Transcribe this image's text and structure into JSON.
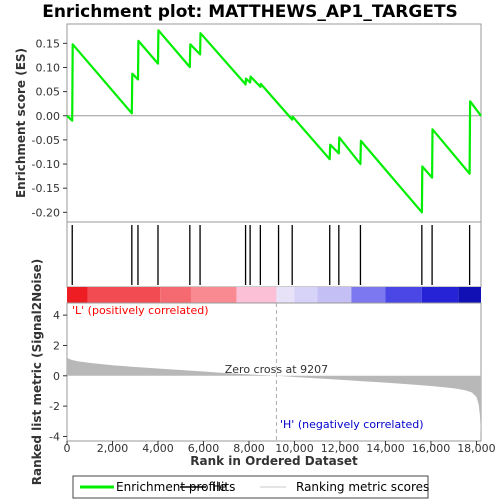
{
  "chart_data": {
    "type": "line",
    "title": "Enrichment plot: MATTHEWS_AP1_TARGETS",
    "xlabel": "Rank in Ordered Dataset",
    "es_panel": {
      "ylabel": "Enrichment score (ES)",
      "ylim": [
        -0.22,
        0.19
      ],
      "yticks": [
        -0.2,
        -0.15,
        -0.1,
        -0.05,
        0.0,
        0.05,
        0.1,
        0.15
      ],
      "ytick_labels": [
        "-0.20",
        "-0.15",
        "-0.10",
        "-0.05",
        "0.00",
        "0.05",
        "0.10",
        "0.15"
      ],
      "series": [
        {
          "name": "Enrichment profile",
          "color": "#00ee00",
          "x": [
            0,
            230,
            250,
            2850,
            2870,
            3120,
            3140,
            4000,
            4020,
            5400,
            5420,
            5850,
            5870,
            7850,
            7870,
            8050,
            8070,
            8500,
            8520,
            9900,
            9920,
            11550,
            11570,
            11950,
            11970,
            12900,
            12920,
            15600,
            15620,
            16050,
            16070,
            17700,
            17720,
            18200
          ],
          "y": [
            0.0,
            -0.01,
            0.148,
            0.005,
            0.087,
            0.075,
            0.155,
            0.108,
            0.177,
            0.101,
            0.148,
            0.127,
            0.171,
            0.065,
            0.077,
            0.069,
            0.081,
            0.06,
            0.066,
            -0.008,
            -0.002,
            -0.09,
            -0.06,
            -0.078,
            -0.045,
            -0.1,
            -0.052,
            -0.2,
            -0.105,
            -0.128,
            -0.028,
            -0.12,
            0.03,
            0.0
          ]
        }
      ]
    },
    "hits": [
      230,
      2850,
      3120,
      4000,
      5400,
      5850,
      7850,
      8050,
      8500,
      9300,
      9900,
      11550,
      11950,
      12900,
      15600,
      16050,
      17700
    ],
    "rank_metric_panel": {
      "ylabel": "Ranked list metric (Signal2Noise)",
      "ylim": [
        -4.3,
        4.8
      ],
      "yticks": [
        -4,
        -2,
        0,
        2,
        4
      ],
      "ytick_labels": [
        "-4",
        "-2",
        "0",
        "2",
        "4"
      ],
      "profile": {
        "x": [
          0,
          50,
          200,
          500,
          1000,
          2000,
          3000,
          4000,
          5000,
          6000,
          7000,
          8000,
          9207,
          10000,
          11000,
          12000,
          13000,
          14000,
          15000,
          16000,
          17000,
          17500,
          17800,
          18000,
          18100,
          18150,
          18200
        ],
        "y": [
          1.3,
          1.15,
          1.05,
          0.95,
          0.85,
          0.7,
          0.58,
          0.48,
          0.38,
          0.28,
          0.18,
          0.09,
          0.0,
          -0.08,
          -0.17,
          -0.26,
          -0.36,
          -0.45,
          -0.56,
          -0.67,
          -0.82,
          -0.95,
          -1.1,
          -1.4,
          -1.9,
          -2.6,
          -3.9
        ]
      },
      "fill_color": "#b8b8b8",
      "zero_cross": 9207,
      "zero_cross_label": "Zero cross at 9207",
      "pos_label": "'L' (positively correlated)",
      "pos_color": "#ff0000",
      "neg_label": "'H' (negatively correlated)",
      "neg_color": "#0000cc"
    },
    "xlim": [
      0,
      18200
    ],
    "xticks": [
      0,
      2000,
      4000,
      6000,
      8000,
      10000,
      12000,
      14000,
      16000,
      18000
    ],
    "xtick_labels": [
      "0",
      "2,000",
      "4,000",
      "6,000",
      "8,000",
      "10,000",
      "12,000",
      "14,000",
      "16,000",
      "18,000"
    ],
    "color_bar": {
      "boundaries": [
        0,
        900,
        4100,
        5450,
        7450,
        9207,
        10000,
        11000,
        12500,
        14000,
        15600,
        17200,
        18200
      ],
      "colors": [
        "#ee1d24",
        "#f24b52",
        "#f56a71",
        "#f98a91",
        "#fbbfd6",
        "#e7e2f8",
        "#d6d2f8",
        "#c4c0f5",
        "#7b78f0",
        "#4a47e6",
        "#2622d6",
        "#1010b5"
      ]
    },
    "legend": [
      {
        "label": "Enrichment profile",
        "color": "#00ee00"
      },
      {
        "label": "Hits",
        "color": "#000000"
      },
      {
        "label": "Ranking metric scores",
        "color": "#c8c8c8"
      }
    ],
    "legend_position": "bottom"
  }
}
